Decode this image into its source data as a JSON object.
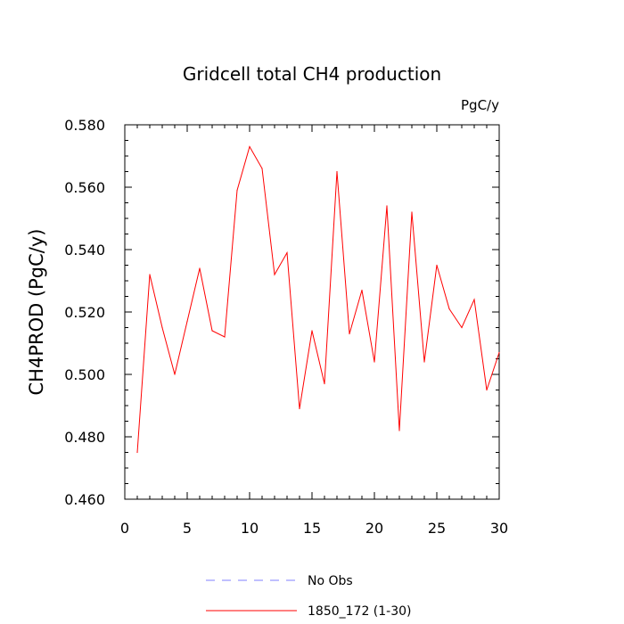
{
  "chart_data": {
    "type": "line",
    "title": "Gridcell total CH4 production",
    "units_label": "PgC/y",
    "ylabel": "CH4PROD  (PgC/y)",
    "xlabel": "",
    "xlim": [
      0,
      30
    ],
    "ylim": [
      0.46,
      0.58
    ],
    "x_ticks": [
      0,
      5,
      10,
      15,
      20,
      25,
      30
    ],
    "y_ticks": [
      0.46,
      0.48,
      0.5,
      0.52,
      0.54,
      0.56,
      0.58
    ],
    "y_tick_labels": [
      "0.460",
      "0.480",
      "0.500",
      "0.520",
      "0.540",
      "0.560",
      "0.580"
    ],
    "grid": false,
    "legend_position": "bottom-center",
    "series": [
      {
        "name": "1850_172 (1-30)",
        "color": "#ff0000",
        "x": [
          1,
          2,
          3,
          4,
          5,
          6,
          7,
          8,
          9,
          10,
          11,
          12,
          13,
          14,
          15,
          16,
          17,
          18,
          19,
          20,
          21,
          22,
          23,
          24,
          25,
          26,
          27,
          28,
          29,
          30
        ],
        "values": [
          0.475,
          0.532,
          0.515,
          0.5,
          0.517,
          0.534,
          0.514,
          0.512,
          0.559,
          0.573,
          0.566,
          0.532,
          0.539,
          0.489,
          0.514,
          0.497,
          0.565,
          0.513,
          0.527,
          0.504,
          0.554,
          0.482,
          0.552,
          0.504,
          0.535,
          0.521,
          0.515,
          0.524,
          0.495,
          0.507
        ]
      }
    ],
    "legend": [
      {
        "label": "No Obs",
        "color": "#8080ff",
        "style": "dashed"
      },
      {
        "label": "1850_172 (1-30)",
        "color": "#ff0000",
        "style": "solid"
      }
    ]
  }
}
